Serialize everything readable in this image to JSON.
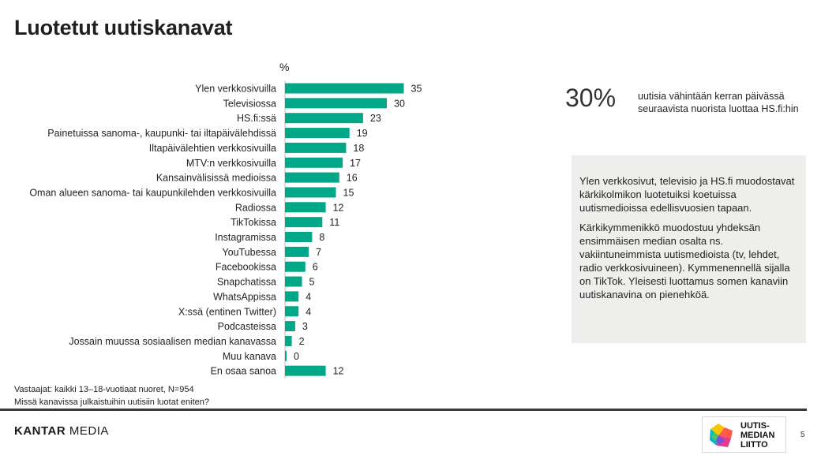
{
  "title": "Luotetut uutiskanavat",
  "chart_data": {
    "type": "bar",
    "orientation": "horizontal",
    "unit_label": "%",
    "categories": [
      "Ylen verkkosivuilla",
      "Televisiossa",
      "HS.fi:ssä",
      "Painetuissa sanoma-, kaupunki- tai iltapäivälehdissä",
      "Iltapäivälehtien verkkosivuilla",
      "MTV:n verkkosivuilla",
      "Kansainvälisissä medioissa",
      "Oman alueen sanoma- tai kaupunkilehden verkkosivuilla",
      "Radiossa",
      "TikTokissa",
      "Instagramissa",
      "YouTubessa",
      "Facebookissa",
      "Snapchatissa",
      "WhatsAppissa",
      "X:ssä (entinen Twitter)",
      "Podcasteissa",
      "Jossain muussa sosiaalisen median kanavassa",
      "Muu kanava",
      "En osaa sanoa"
    ],
    "values": [
      35,
      30,
      23,
      19,
      18,
      17,
      16,
      15,
      12,
      11,
      8,
      7,
      6,
      5,
      4,
      4,
      3,
      2,
      0,
      12
    ],
    "bar_color": "#00a887",
    "grid": false,
    "legend": "none"
  },
  "kpi": {
    "value": "30%",
    "text": "uutisia vähintään kerran päivässä seuraavista nuorista luottaa HS.fi:hin"
  },
  "note": {
    "p1": "Ylen verkkosivut, televisio ja HS.fi muodostavat kärkikolmikon luotetuiksi koetuissa uutismedioissa edellisvuosien tapaan.",
    "p2": "Kärkikymmenikkö muodostuu yhdeksän ensimmäisen median osalta ns. vakiintuneimmista uutismedioista (tv, lehdet, radio verkkosivuineen). Kymmenennellä sijalla on TikTok. Yleisesti luottamus somen kanaviin uutiskanavina on pienehköä."
  },
  "footnotes": {
    "respondents": "Vastaajat: kaikki 13–18-vuotiaat nuoret, N=954",
    "question": "Missä kanavissa julkaistuihin uutisiin luotat eniten?"
  },
  "footer": {
    "brand_bold": "KANTAR",
    "brand_rest": " MEDIA",
    "logo_line1": "UUTIS-",
    "logo_line2": "MEDIAN",
    "logo_line3": "LIITTO",
    "page_number": "5"
  }
}
